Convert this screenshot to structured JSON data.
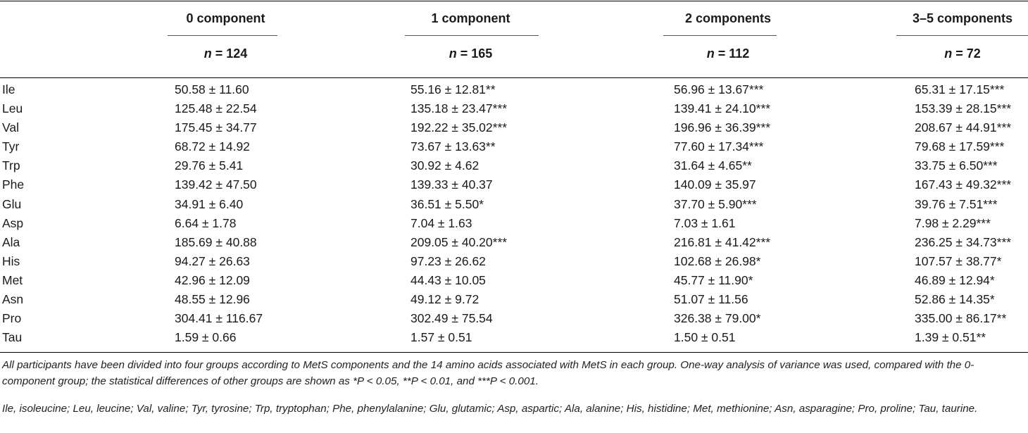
{
  "table": {
    "columns": [
      {
        "label": "0 component",
        "n": "n = 124"
      },
      {
        "label": "1 component",
        "n": "n = 165"
      },
      {
        "label": "2 components",
        "n": "n = 112"
      },
      {
        "label": "3–5 components",
        "n": "n = 72"
      }
    ],
    "rows": [
      {
        "name": "Ile",
        "values": [
          "50.58 ± 11.60",
          "55.16 ± 12.81**",
          "56.96 ± 13.67***",
          "65.31 ± 17.15***"
        ]
      },
      {
        "name": "Leu",
        "values": [
          "125.48 ± 22.54",
          "135.18 ± 23.47***",
          "139.41 ± 24.10***",
          "153.39 ± 28.15***"
        ]
      },
      {
        "name": "Val",
        "values": [
          "175.45 ± 34.77",
          "192.22 ± 35.02***",
          "196.96 ± 36.39***",
          "208.67 ± 44.91***"
        ]
      },
      {
        "name": "Tyr",
        "values": [
          "68.72 ± 14.92",
          "73.67 ± 13.63**",
          "77.60 ± 17.34***",
          "79.68 ± 17.59***"
        ]
      },
      {
        "name": "Trp",
        "values": [
          "29.76 ± 5.41",
          "30.92 ± 4.62",
          "31.64 ± 4.65**",
          "33.75 ± 6.50***"
        ]
      },
      {
        "name": "Phe",
        "values": [
          "139.42 ± 47.50",
          "139.33 ± 40.37",
          "140.09 ± 35.97",
          "167.43 ± 49.32***"
        ]
      },
      {
        "name": "Glu",
        "values": [
          "34.91 ± 6.40",
          "36.51 ± 5.50*",
          "37.70 ± 5.90***",
          "39.76 ± 7.51***"
        ]
      },
      {
        "name": "Asp",
        "values": [
          "6.64 ± 1.78",
          "7.04 ± 1.63",
          "7.03 ± 1.61",
          "7.98 ± 2.29***"
        ]
      },
      {
        "name": "Ala",
        "values": [
          "185.69 ± 40.88",
          "209.05 ± 40.20***",
          "216.81 ± 41.42***",
          "236.25 ± 34.73***"
        ]
      },
      {
        "name": "His",
        "values": [
          "94.27 ± 26.63",
          "97.23 ± 26.62",
          "102.68 ± 26.98*",
          "107.57 ± 38.77*"
        ]
      },
      {
        "name": "Met",
        "values": [
          "42.96 ± 12.09",
          "44.43 ± 10.05",
          "45.77 ± 11.90*",
          "46.89 ± 12.94*"
        ]
      },
      {
        "name": "Asn",
        "values": [
          "48.55 ± 12.96",
          "49.12 ± 9.72",
          "51.07 ± 11.56",
          "52.86 ± 14.35*"
        ]
      },
      {
        "name": "Pro",
        "values": [
          "304.41 ± 116.67",
          "302.49 ± 75.54",
          "326.38 ± 79.00*",
          "335.00 ± 86.17**"
        ]
      },
      {
        "name": "Tau",
        "values": [
          "1.59 ± 0.66",
          "1.57 ± 0.51",
          "1.50 ± 0.51",
          "1.39 ± 0.51**"
        ]
      }
    ]
  },
  "footnotes": {
    "note1": "All participants have been divided into four groups according to MetS components and the 14 amino acids associated with MetS in each group. One-way analysis of variance was used, compared with the 0-component group; the statistical differences of other groups are shown as *P < 0.05, **P < 0.01, and ***P < 0.001.",
    "note2": "Ile, isoleucine; Leu, leucine; Val, valine; Tyr, tyrosine; Trp, tryptophan; Phe, phenylalanine; Glu, glutamic; Asp, aspartic; Ala, alanine; His, histidine; Met, methionine; Asn, asparagine; Pro, proline; Tau, taurine."
  }
}
